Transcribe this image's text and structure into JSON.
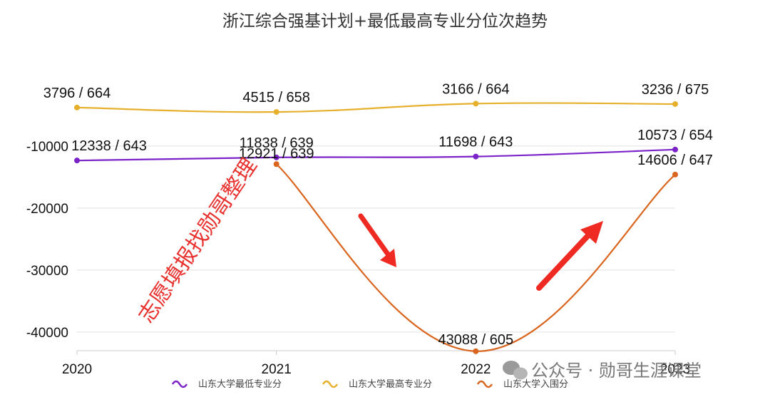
{
  "chart_data": {
    "type": "line",
    "title": "浙江综合强基计划+最低最高专业分位次趋势",
    "categories": [
      "2020",
      "2021",
      "2022",
      "2023"
    ],
    "ylim": [
      -43000,
      4000
    ],
    "yticks": [
      {
        "value": -10000,
        "label": "-10000"
      },
      {
        "value": -20000,
        "label": "-20000"
      },
      {
        "value": -30000,
        "label": "-30000"
      },
      {
        "value": -40000,
        "label": "-40000"
      }
    ],
    "grid": true,
    "legend_position": "bottom",
    "series": [
      {
        "name": "山东大学最低专业分",
        "color": "#7b22c9",
        "values": [
          -12338,
          -11838,
          -11698,
          -10573
        ],
        "labels": [
          "12338 / 643",
          "11838 / 639",
          "11698 / 643",
          "10573 / 654"
        ]
      },
      {
        "name": "山东大学最高专业分",
        "color": "#e6b02d",
        "values": [
          -3796,
          -4515,
          -3166,
          -3236
        ],
        "labels": [
          "3796 / 664",
          "4515 / 658",
          "3166 / 664",
          "3236 / 675"
        ]
      },
      {
        "name": "山东大学入围分",
        "color": "#d9651f",
        "values": [
          null,
          -12921,
          -43088,
          -14606
        ],
        "labels": [
          "",
          "12921 / 639",
          "43088 / 605",
          "14606 / 647"
        ]
      }
    ]
  },
  "watermark": {
    "text": "志愿填报找勋哥整理",
    "account": "公众号 · 勋哥生涯课堂"
  }
}
